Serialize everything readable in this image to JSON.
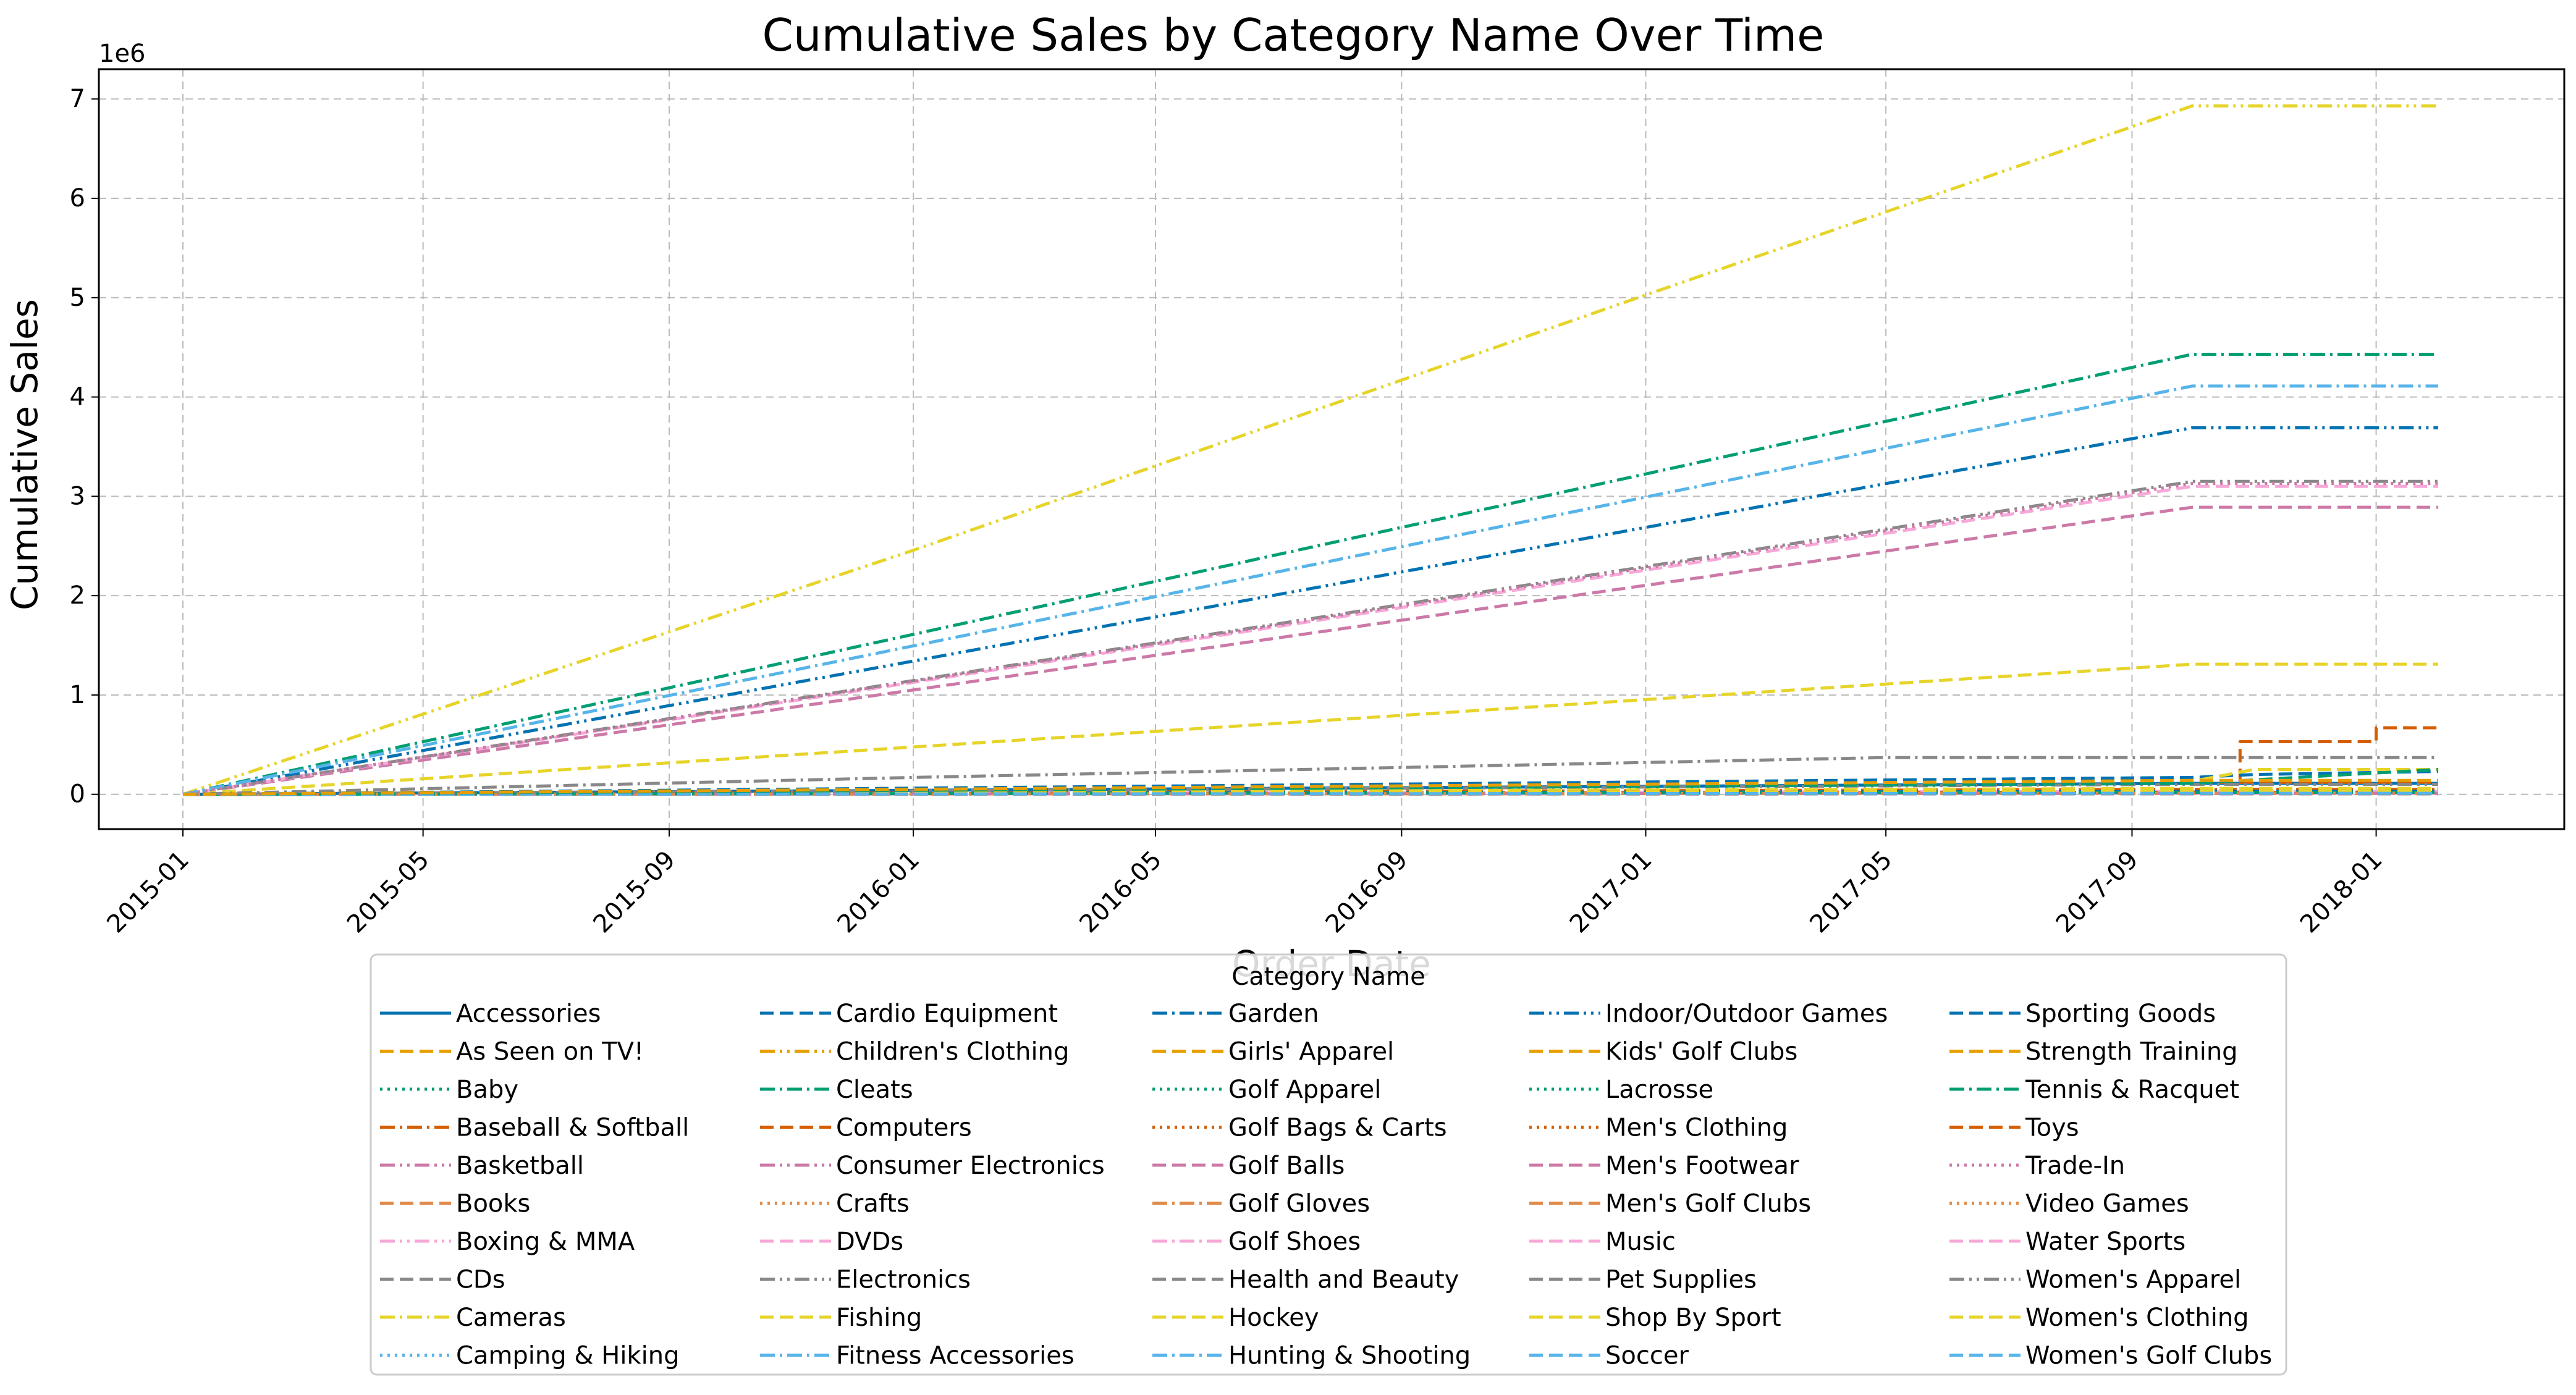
{
  "chart_data": {
    "type": "line",
    "title": "Cumulative Sales by Category Name Over Time",
    "xlabel": "Order Date",
    "ylabel": "Cumulative Sales",
    "y_offset_label": "1e6",
    "y_unit": 1000000,
    "xlim": [
      "2014-11-20",
      "2018-04-05"
    ],
    "ylim": [
      -350000,
      7300000
    ],
    "x_ticks": [
      "2015-01",
      "2015-05",
      "2015-09",
      "2016-01",
      "2016-05",
      "2016-09",
      "2017-01",
      "2017-05",
      "2017-09",
      "2018-01"
    ],
    "y_ticks": [
      0,
      1000000,
      2000000,
      3000000,
      4000000,
      5000000,
      6000000,
      7000000
    ],
    "y_tick_labels": [
      "0",
      "1",
      "2",
      "3",
      "4",
      "5",
      "6",
      "7"
    ],
    "grid": true,
    "legend": {
      "title": "Category Name",
      "placement": "lower-center",
      "columns": 5
    },
    "x_dates": [
      "2015-01-01",
      "2017-10-01",
      "2018-02-01"
    ],
    "series": [
      {
        "name": "Accessories",
        "values": [
          0,
          110000,
          110000
        ],
        "color": "#0072B2",
        "dash": "solid"
      },
      {
        "name": "As Seen on  TV!",
        "values": [
          0,
          20000,
          20000
        ],
        "color": "#E69F00",
        "dash": "dashed"
      },
      {
        "name": "Baby",
        "values": [
          0,
          10000,
          10000
        ],
        "color": "#009E73",
        "dash": "dotted"
      },
      {
        "name": "Baseball & Softball",
        "values": [
          0,
          50000,
          50000
        ],
        "color": "#D55E00",
        "dash": "dashdot"
      },
      {
        "name": "Basketball",
        "values": [
          0,
          10000,
          10000
        ],
        "color": "#CC79A7",
        "dash": "dashdotdot"
      },
      {
        "name": "Books",
        "values": [
          0,
          5000,
          5000
        ],
        "color": "#E08A4A",
        "dash": "dashed"
      },
      {
        "name": "Boxing & MMA",
        "values": [
          0,
          30000,
          30000
        ],
        "color": "#F7A8D8",
        "dash": "dashdotdot"
      },
      {
        "name": "CDs",
        "values": [
          0,
          20000,
          20000
        ],
        "color": "#888888",
        "dash": "dashed"
      },
      {
        "name": "Cameras",
        "values": [
          0,
          20000,
          20000
        ],
        "color": "#E6D429",
        "dash": "dashdot"
      },
      {
        "name": "Camping & Hiking",
        "values": [
          0,
          10000,
          10000
        ],
        "color": "#56B4E9",
        "dash": "dotted"
      },
      {
        "name": "Cardio Equipment",
        "values": [
          0,
          40000,
          40000
        ],
        "color": "#0072B2",
        "dash": "dashed"
      },
      {
        "name": "Children's Clothing",
        "values": [
          0,
          10000,
          10000
        ],
        "color": "#E69F00",
        "dash": "dashdotdot"
      },
      {
        "name": "Cleats",
        "values": [
          0,
          4430000,
          4430000
        ],
        "color": "#009E73",
        "dash": "dashdot"
      },
      {
        "name": "Computers",
        "values": [
          0,
          120000,
          120000
        ],
        "color": "#D55E00",
        "dash": "dashed"
      },
      {
        "name": "Consumer Electronics",
        "values": [
          0,
          10000,
          10000
        ],
        "color": "#CC79A7",
        "dash": "dashdotdot"
      },
      {
        "name": "Crafts",
        "values": [
          0,
          10000,
          10000
        ],
        "color": "#E08A4A",
        "dash": "dotted"
      },
      {
        "name": "DVDs",
        "values": [
          0,
          10000,
          10000
        ],
        "color": "#F7A8D8",
        "dash": "dashed"
      },
      {
        "name": "Electronics",
        "values": [
          0,
          100000,
          100000
        ],
        "color": "#888888",
        "dash": "dashdotdot"
      },
      {
        "name": "Fishing",
        "values": [
          0,
          60000,
          60000
        ],
        "color": "#E6D429",
        "dash": "dashed"
      },
      {
        "name": "Fitness Accessories",
        "values": [
          0,
          10000,
          10000
        ],
        "color": "#56B4E9",
        "dash": "dashdot"
      },
      {
        "name": "Garden",
        "values": [
          0,
          30000,
          30000
        ],
        "color": "#0072B2",
        "dash": "dashdot"
      },
      {
        "name": "Girls' Apparel",
        "values": [
          0,
          20000,
          20000
        ],
        "color": "#E69F00",
        "dash": "dashed"
      },
      {
        "name": "Golf Apparel",
        "values": [
          0,
          20000,
          20000
        ],
        "color": "#009E73",
        "dash": "dotted"
      },
      {
        "name": "Golf Bags & Carts",
        "values": [
          0,
          10000,
          10000
        ],
        "color": "#D55E00",
        "dash": "dotted"
      },
      {
        "name": "Golf Balls",
        "values": [
          0,
          30000,
          30000
        ],
        "color": "#CC79A7",
        "dash": "dashed"
      },
      {
        "name": "Golf Gloves",
        "values": [
          0,
          10000,
          10000
        ],
        "color": "#E08A4A",
        "dash": "dashdot"
      },
      {
        "name": "Golf Shoes",
        "values": [
          0,
          10000,
          10000
        ],
        "color": "#F7A8D8",
        "dash": "dashdot"
      },
      {
        "name": "Health and Beauty",
        "values": [
          0,
          5000,
          5000
        ],
        "color": "#888888",
        "dash": "dashed"
      },
      {
        "name": "Hockey",
        "values": [
          0,
          10000,
          10000
        ],
        "color": "#E6D429",
        "dash": "dashed"
      },
      {
        "name": "Hunting & Shooting",
        "values": [
          0,
          20000,
          20000
        ],
        "color": "#56B4E9",
        "dash": "dashdot"
      },
      {
        "name": "Indoor/Outdoor Games",
        "values": [
          0,
          3690000,
          3690000
        ],
        "color": "#0072B2",
        "dash": "dashdotdot"
      },
      {
        "name": "Kids' Golf Clubs",
        "values": [
          0,
          10000,
          10000
        ],
        "color": "#E69F00",
        "dash": "dashed"
      },
      {
        "name": "Lacrosse",
        "values": [
          0,
          20000,
          20000
        ],
        "color": "#009E73",
        "dash": "dotted"
      },
      {
        "name": "Men's Clothing",
        "values": [
          0,
          20000,
          20000
        ],
        "color": "#D55E00",
        "dash": "dotted"
      },
      {
        "name": "Men's Footwear",
        "values": [
          0,
          2890000,
          2890000
        ],
        "color": "#CC79A7",
        "dash": "dashed"
      },
      {
        "name": "Men's Golf Clubs",
        "values": [
          0,
          10000,
          10000
        ],
        "color": "#E08A4A",
        "dash": "dashed"
      },
      {
        "name": "Music",
        "values": [
          0,
          10000,
          10000
        ],
        "color": "#F7A8D8",
        "dash": "dashed"
      },
      {
        "name": "Pet Supplies",
        "values": [
          0,
          10000,
          10000
        ],
        "color": "#888888",
        "dash": "dashed"
      },
      {
        "name": "Shop By Sport",
        "values": [
          0,
          1310000,
          1310000
        ],
        "color": "#E6D429",
        "dash": "dashed"
      },
      {
        "name": "Soccer",
        "values": [
          0,
          10000,
          10000
        ],
        "color": "#56B4E9",
        "dash": "dashed"
      },
      {
        "name": "Sporting Goods",
        "values": [
          0,
          10000,
          10000
        ],
        "color": "#0072B2",
        "dash": "dashed"
      },
      {
        "name": "Strength Training",
        "values": [
          0,
          30000,
          30000
        ],
        "color": "#E69F00",
        "dash": "dashed"
      },
      {
        "name": "Tennis & Racquet",
        "values": [
          0,
          20000,
          20000
        ],
        "color": "#009E73",
        "dash": "dashdot"
      },
      {
        "name": "Toys",
        "values": [
          0,
          10000,
          10000
        ],
        "color": "#D55E00",
        "dash": "dashed"
      },
      {
        "name": "Trade-In",
        "values": [
          0,
          10000,
          10000
        ],
        "color": "#CC79A7",
        "dash": "dotted"
      },
      {
        "name": "Video Games",
        "values": [
          0,
          10000,
          10000
        ],
        "color": "#E08A4A",
        "dash": "dotted"
      },
      {
        "name": "Water Sports",
        "values": [
          0,
          3100000,
          3100000
        ],
        "color": "#F7A8D8",
        "dash": "dashed"
      },
      {
        "name": "Women's Apparel",
        "values": [
          0,
          3150000,
          3150000
        ],
        "color": "#888888",
        "dash": "dashdotdot"
      },
      {
        "name": "Women's Clothing",
        "values": [
          0,
          30000,
          30000
        ],
        "color": "#E6D429",
        "dash": "dashed"
      },
      {
        "name": "Women's Golf Clubs",
        "values": [
          0,
          10000,
          10000
        ],
        "color": "#56B4E9",
        "dash": "dashed"
      }
    ],
    "extra_series": [
      {
        "x": [
          "2015-01-01",
          "2015-12-31",
          "2016-12-31",
          "2017-10-01",
          "2018-02-01"
        ],
        "values": [
          0,
          2450000,
          5020000,
          6930000,
          6930000
        ],
        "color": "#E6D429",
        "dash": "dashdotdot"
      },
      {
        "x": [
          "2015-01-01",
          "2017-10-01",
          "2018-02-01"
        ],
        "values": [
          0,
          4110000,
          4110000
        ],
        "color": "#56B4E9",
        "dash": "dashdot"
      },
      {
        "x": [
          "2015-01-01",
          "2017-10-01",
          "2018-02-01"
        ],
        "values": [
          0,
          3130000,
          3130000
        ],
        "color": "#CC79A7",
        "dash": "dotted"
      },
      {
        "x": [
          "2015-01-01",
          "2016-01-01",
          "2017-05-01",
          "2017-10-01",
          "2018-02-01"
        ],
        "values": [
          0,
          170000,
          370000,
          370000,
          370000
        ],
        "color": "#888888",
        "dash": "dashdot"
      },
      {
        "x": [
          "2015-01-01",
          "2017-10-01",
          "2017-10-25",
          "2017-10-25",
          "2018-01-01",
          "2018-01-01",
          "2018-02-01"
        ],
        "values": [
          0,
          130000,
          130000,
          530000,
          530000,
          670000,
          670000
        ],
        "color": "#D55E00",
        "dash": "dashed"
      },
      {
        "x": [
          "2015-01-01",
          "2017-10-01",
          "2017-11-01",
          "2018-02-01"
        ],
        "values": [
          0,
          170000,
          200000,
          230000
        ],
        "color": "#0072B2",
        "dash": "dashed"
      },
      {
        "x": [
          "2015-01-01",
          "2017-10-01",
          "2017-11-01",
          "2018-02-01"
        ],
        "values": [
          0,
          130000,
          250000,
          250000
        ],
        "color": "#E6D429",
        "dash": "dashed"
      },
      {
        "x": [
          "2015-01-01",
          "2017-10-01",
          "2018-02-01"
        ],
        "values": [
          0,
          110000,
          250000
        ],
        "color": "#009E73",
        "dash": "dashed"
      },
      {
        "x": [
          "2015-01-01",
          "2017-10-01",
          "2018-02-01"
        ],
        "values": [
          0,
          140000,
          140000
        ],
        "color": "#E69F00",
        "dash": "dashed"
      }
    ]
  }
}
